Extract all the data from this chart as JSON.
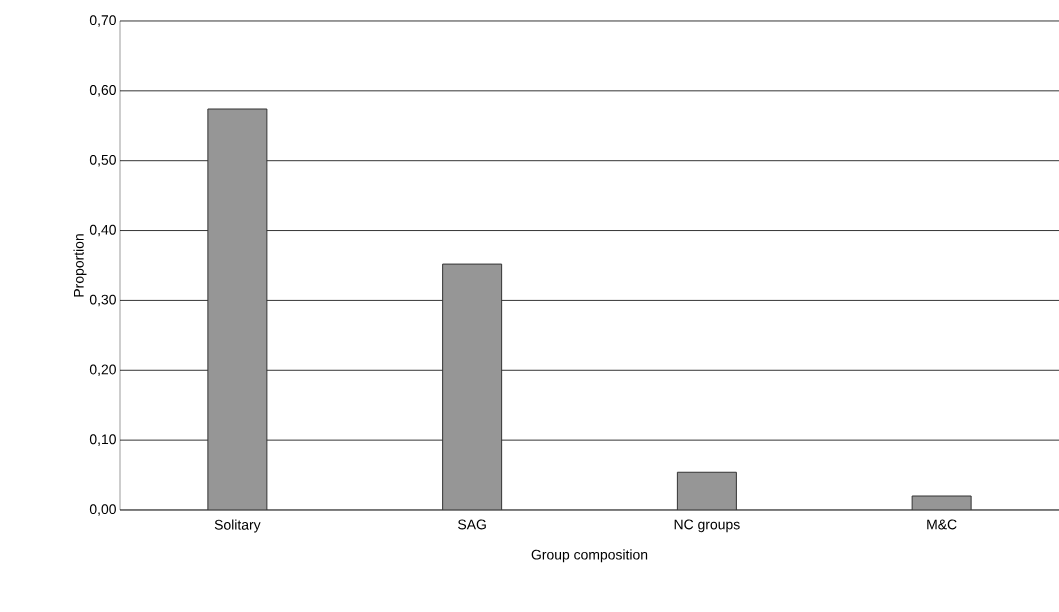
{
  "chart_data": {
    "type": "bar",
    "xlabel": "Group composition",
    "ylabel": "Proportion",
    "categories": [
      "Solitary",
      "SAG",
      "NC groups",
      "M&C"
    ],
    "values": [
      0.574,
      0.352,
      0.054,
      0.02
    ],
    "color": "#969696",
    "ylim": [
      0,
      0.7
    ],
    "yticks": [
      {
        "value": 0,
        "label": "0,00"
      },
      {
        "value": 0.1,
        "label": "0,10"
      },
      {
        "value": 0.2,
        "label": "0,20"
      },
      {
        "value": 0.3,
        "label": "0,30"
      },
      {
        "value": 0.4,
        "label": "0,40"
      },
      {
        "value": 0.5,
        "label": "0,50"
      },
      {
        "value": 0.6,
        "label": "0,60"
      },
      {
        "value": 0.7,
        "label": "0,70"
      }
    ],
    "grid": "y"
  }
}
